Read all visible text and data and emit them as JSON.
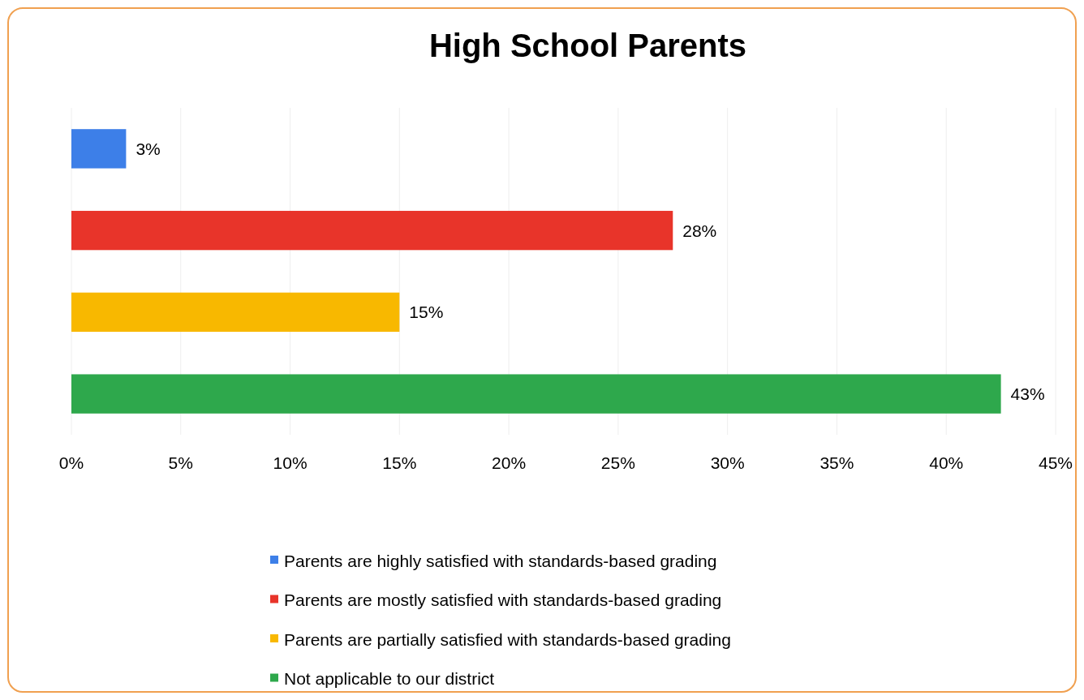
{
  "chart_data": {
    "type": "bar",
    "orientation": "horizontal",
    "title": "High School Parents",
    "categories": [
      null,
      null,
      null,
      null
    ],
    "series": [
      {
        "name": "Parents are highly satisfied with standards-based grading",
        "color": "#3d7fe8",
        "values": [
          2.5,
          null,
          null,
          null
        ],
        "value_labels": [
          "3%",
          null,
          null,
          null
        ]
      },
      {
        "name": "Parents are mostly satisfied with standards-based grading",
        "color": "#e8342a",
        "values": [
          null,
          27.5,
          null,
          null
        ],
        "value_labels": [
          null,
          "28%",
          null,
          null
        ]
      },
      {
        "name": "Parents are partially satisfied with standards-based grading",
        "color": "#f8b800",
        "values": [
          null,
          null,
          15,
          null
        ],
        "value_labels": [
          null,
          null,
          "15%",
          null
        ]
      },
      {
        "name": "Not applicable to our district",
        "color": "#2ea84c",
        "values": [
          null,
          null,
          null,
          42.5
        ],
        "value_labels": [
          null,
          null,
          null,
          "43%"
        ]
      }
    ],
    "xlim": [
      0,
      45
    ],
    "xticks": [
      {
        "value": 0,
        "label": "0%"
      },
      {
        "value": 5,
        "label": "5%"
      },
      {
        "value": 10,
        "label": "10%"
      },
      {
        "value": 15,
        "label": "15%"
      },
      {
        "value": 20,
        "label": "20%"
      },
      {
        "value": 25,
        "label": "25%"
      },
      {
        "value": 30,
        "label": "30%"
      },
      {
        "value": 35,
        "label": "35%"
      },
      {
        "value": 40,
        "label": "40%"
      },
      {
        "value": 45,
        "label": "45%"
      }
    ],
    "grid": "x",
    "legend": "bottom"
  }
}
